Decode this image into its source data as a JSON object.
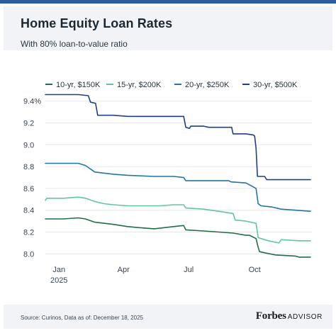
{
  "header": {
    "title": "Home Equity Loan Rates",
    "subtitle": "With 80% loan-to-value ratio"
  },
  "footer": {
    "source": "Source: Curinos, Data as of: December 18, 2025",
    "brand_main": "Forbes",
    "brand_sub": "ADVISOR"
  },
  "chart_data": {
    "type": "line",
    "title": "Home Equity Loan Rates",
    "subtitle": "With 80% loan-to-value ratio",
    "xlabel": "",
    "ylabel": "",
    "x_ticks": [
      {
        "label": "Jan",
        "sublabel": "2025",
        "date": "2025-01-01"
      },
      {
        "label": "Apr",
        "sublabel": "",
        "date": "2025-04-01"
      },
      {
        "label": "Jul",
        "sublabel": "",
        "date": "2025-07-01"
      },
      {
        "label": "Oct",
        "sublabel": "",
        "date": "2025-10-01"
      }
    ],
    "y_ticks": [
      "9.4%",
      "9.2",
      "9.0",
      "8.8",
      "8.6",
      "8.4",
      "8.2",
      "8.0"
    ],
    "y_tick_values": [
      9.4,
      9.2,
      9.0,
      8.8,
      8.6,
      8.4,
      8.2,
      8.0
    ],
    "xlim": [
      "2024-12-13",
      "2025-12-18"
    ],
    "ylim": [
      7.95,
      9.45
    ],
    "grid": "horizontal",
    "legend_position": "top",
    "series": [
      {
        "name": "10-yr, $150K",
        "color": "#216e47",
        "points": [
          [
            "2024-12-13",
            8.32
          ],
          [
            "2025-01-07",
            8.32
          ],
          [
            "2025-01-28",
            8.33
          ],
          [
            "2025-02-07",
            8.32
          ],
          [
            "2025-02-20",
            8.29
          ],
          [
            "2025-03-18",
            8.27
          ],
          [
            "2025-04-07",
            8.25
          ],
          [
            "2025-04-23",
            8.24
          ],
          [
            "2025-05-14",
            8.23
          ],
          [
            "2025-06-10",
            8.25
          ],
          [
            "2025-06-24",
            8.26
          ],
          [
            "2025-06-27",
            8.22
          ],
          [
            "2025-07-22",
            8.21
          ],
          [
            "2025-08-12",
            8.2
          ],
          [
            "2025-09-01",
            8.19
          ],
          [
            "2025-09-19",
            8.17
          ],
          [
            "2025-09-24",
            8.17
          ],
          [
            "2025-10-03",
            8.14
          ],
          [
            "2025-10-06",
            8.06
          ],
          [
            "2025-10-08",
            8.02
          ],
          [
            "2025-10-15",
            8.01
          ],
          [
            "2025-10-30",
            7.99
          ],
          [
            "2025-11-27",
            7.98
          ],
          [
            "2025-12-02",
            7.97
          ],
          [
            "2025-12-18",
            7.97
          ]
        ]
      },
      {
        "name": "15-yr, $200K",
        "color": "#5ec79b",
        "points": [
          [
            "2024-12-13",
            8.49
          ],
          [
            "2024-12-15",
            8.51
          ],
          [
            "2025-01-07",
            8.51
          ],
          [
            "2025-01-28",
            8.52
          ],
          [
            "2025-02-07",
            8.51
          ],
          [
            "2025-02-20",
            8.48
          ],
          [
            "2025-03-05",
            8.46
          ],
          [
            "2025-03-18",
            8.45
          ],
          [
            "2025-04-07",
            8.44
          ],
          [
            "2025-05-22",
            8.44
          ],
          [
            "2025-06-10",
            8.45
          ],
          [
            "2025-06-24",
            8.45
          ],
          [
            "2025-06-27",
            8.42
          ],
          [
            "2025-07-22",
            8.41
          ],
          [
            "2025-08-12",
            8.39
          ],
          [
            "2025-09-01",
            8.37
          ],
          [
            "2025-09-04",
            8.31
          ],
          [
            "2025-09-19",
            8.3
          ],
          [
            "2025-10-03",
            8.28
          ],
          [
            "2025-10-06",
            8.15
          ],
          [
            "2025-10-10",
            8.14
          ],
          [
            "2025-10-20",
            8.12
          ],
          [
            "2025-11-04",
            8.1
          ],
          [
            "2025-11-07",
            8.13
          ],
          [
            "2025-12-02",
            8.12
          ],
          [
            "2025-12-18",
            8.12
          ]
        ]
      },
      {
        "name": "20-yr, $250K",
        "color": "#1f77a6",
        "points": [
          [
            "2024-12-13",
            8.83
          ],
          [
            "2025-01-28",
            8.83
          ],
          [
            "2025-02-07",
            8.81
          ],
          [
            "2025-02-20",
            8.75
          ],
          [
            "2025-03-18",
            8.73
          ],
          [
            "2025-04-07",
            8.72
          ],
          [
            "2025-05-14",
            8.71
          ],
          [
            "2025-06-10",
            8.71
          ],
          [
            "2025-06-24",
            8.7
          ],
          [
            "2025-06-27",
            8.67
          ],
          [
            "2025-07-22",
            8.67
          ],
          [
            "2025-08-12",
            8.67
          ],
          [
            "2025-08-26",
            8.67
          ],
          [
            "2025-08-29",
            8.66
          ],
          [
            "2025-09-19",
            8.65
          ],
          [
            "2025-10-03",
            8.6
          ],
          [
            "2025-10-06",
            8.46
          ],
          [
            "2025-10-10",
            8.44
          ],
          [
            "2025-10-25",
            8.43
          ],
          [
            "2025-11-07",
            8.41
          ],
          [
            "2025-11-27",
            8.4
          ],
          [
            "2025-12-18",
            8.39
          ]
        ]
      },
      {
        "name": "30-yr, $500K",
        "color": "#1f3f8c",
        "points": [
          [
            "2024-12-13",
            9.46
          ],
          [
            "2025-01-28",
            9.46
          ],
          [
            "2025-02-11",
            9.45
          ],
          [
            "2025-02-14",
            9.39
          ],
          [
            "2025-02-21",
            9.38
          ],
          [
            "2025-02-24",
            9.27
          ],
          [
            "2025-03-18",
            9.27
          ],
          [
            "2025-04-07",
            9.26
          ],
          [
            "2025-06-24",
            9.26
          ],
          [
            "2025-06-27",
            9.16
          ],
          [
            "2025-07-02",
            9.15
          ],
          [
            "2025-07-04",
            9.17
          ],
          [
            "2025-07-22",
            9.17
          ],
          [
            "2025-07-29",
            9.16
          ],
          [
            "2025-08-12",
            9.16
          ],
          [
            "2025-08-30",
            9.16
          ],
          [
            "2025-09-01",
            9.1
          ],
          [
            "2025-09-19",
            9.1
          ],
          [
            "2025-09-29",
            9.09
          ],
          [
            "2025-10-01",
            9.08
          ],
          [
            "2025-10-03",
            8.97
          ],
          [
            "2025-10-05",
            8.71
          ],
          [
            "2025-10-15",
            8.71
          ],
          [
            "2025-10-18",
            8.68
          ],
          [
            "2025-11-07",
            8.68
          ],
          [
            "2025-12-18",
            8.68
          ]
        ]
      }
    ]
  }
}
